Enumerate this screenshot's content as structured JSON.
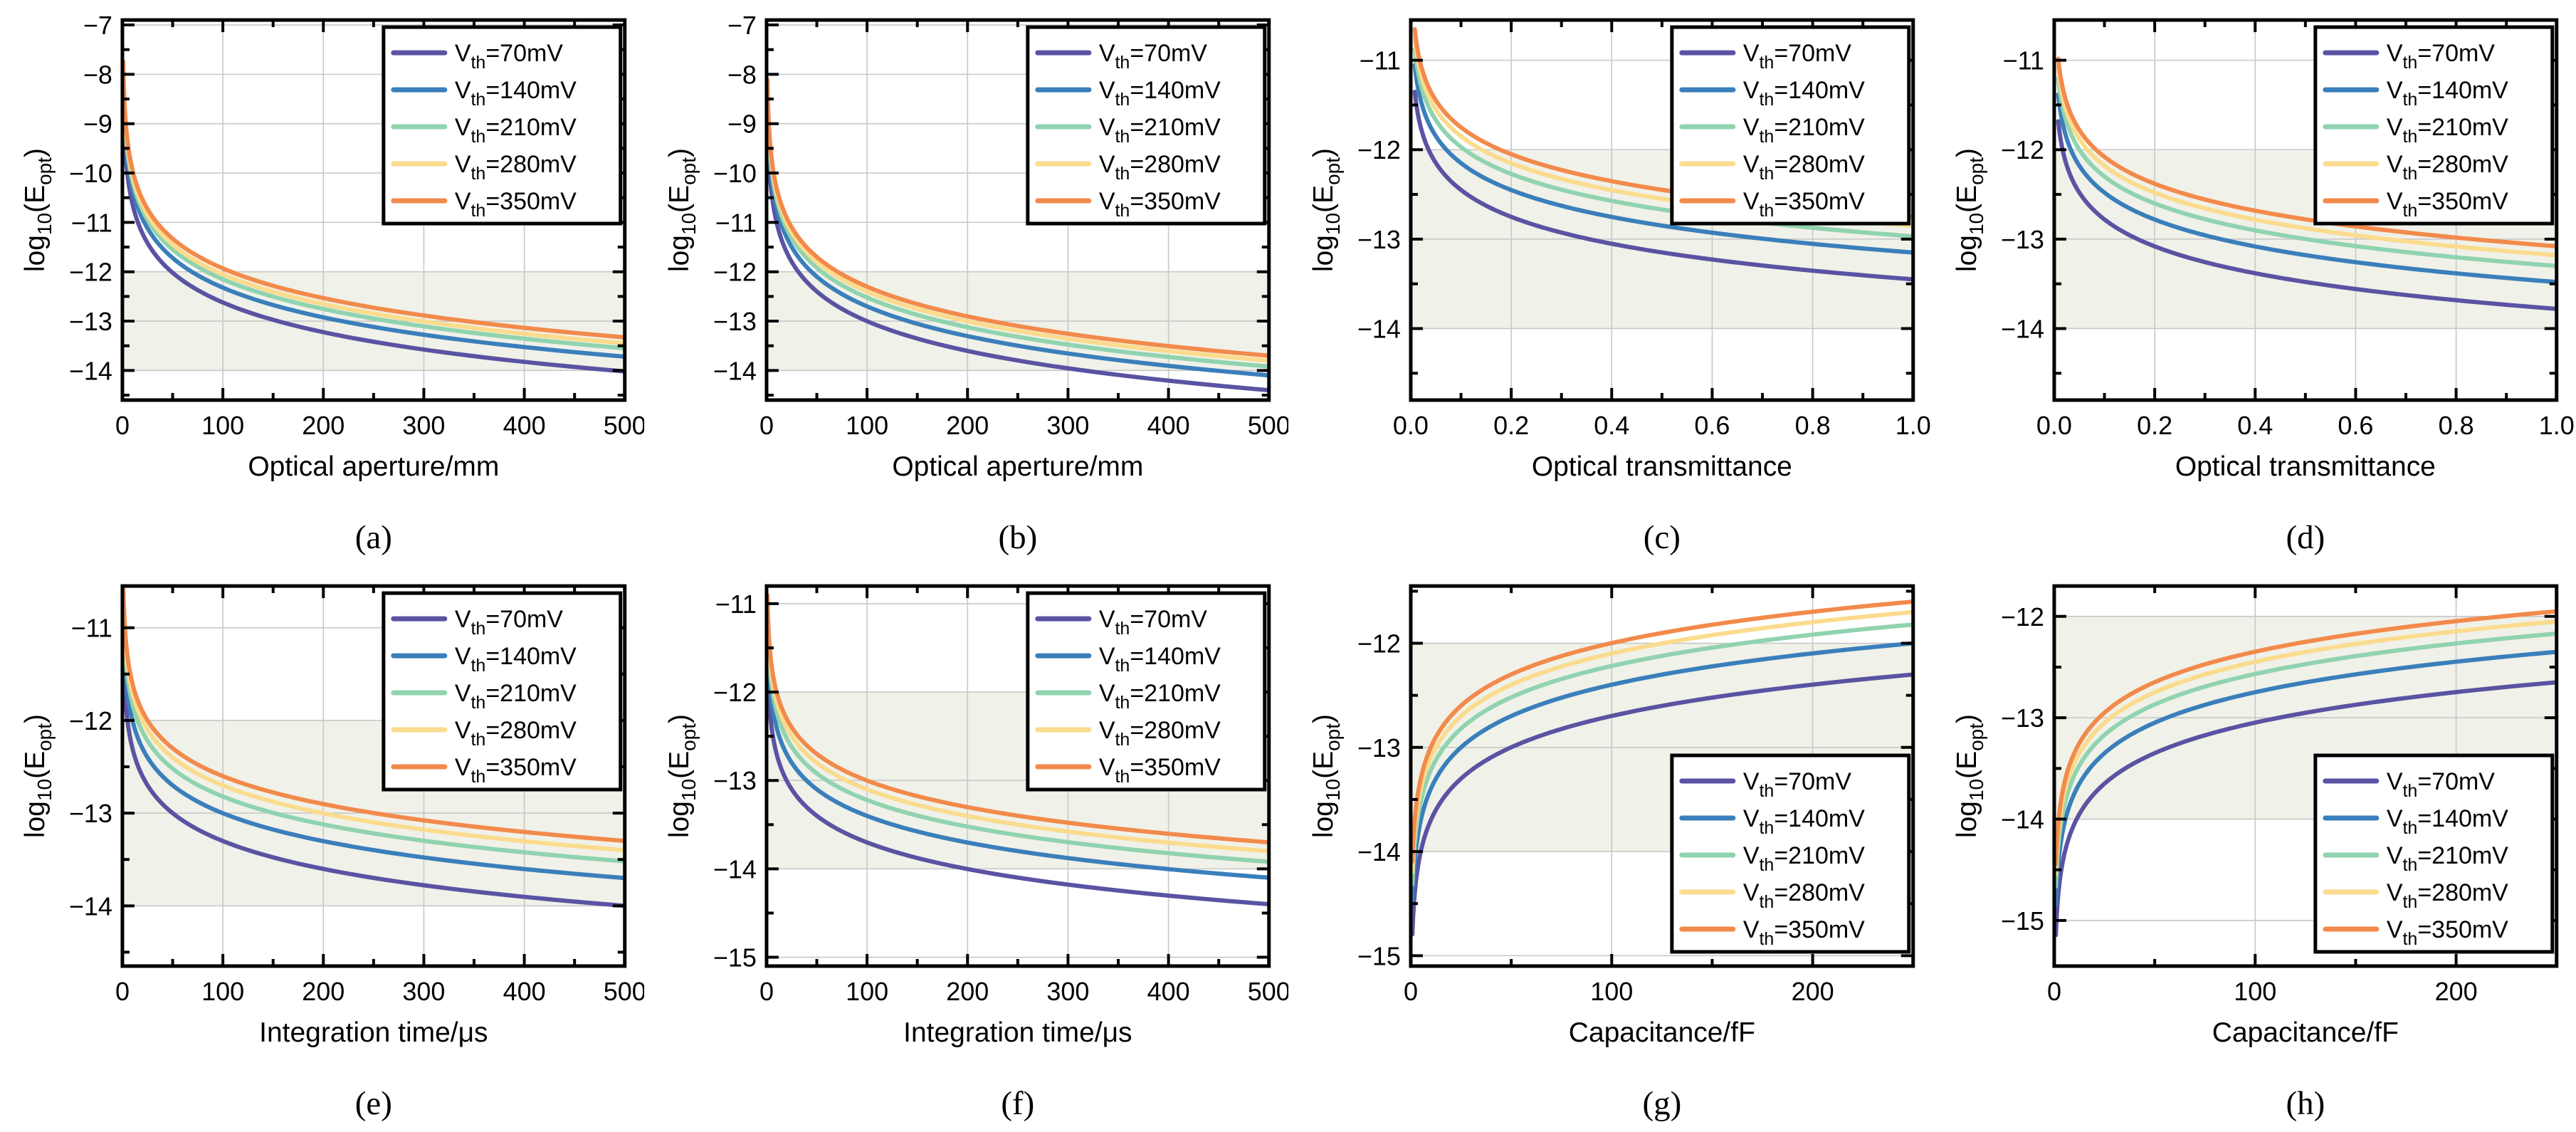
{
  "page": {
    "background": "#FFFFFF"
  },
  "style": {
    "band_fill": "#F0F1E8",
    "grid_color": "#C8C8C8",
    "axis_color": "#000000",
    "legend_bg": "#FFFFFF",
    "legend_border": "#000000"
  },
  "ylabel": {
    "pre": "log",
    "sub": "10",
    "mid": "(E",
    "sub2": "opt",
    "post": ")",
    "plain": "log10(Eopt)"
  },
  "series_meta": [
    {
      "key": "vth-70mv",
      "label": {
        "pre": "V",
        "sub": "th",
        "post": "=70mV"
      },
      "plain": "Vth=70mV",
      "color": "#5A53A3"
    },
    {
      "key": "vth-140mv",
      "label": {
        "pre": "V",
        "sub": "th",
        "post": "=140mV"
      },
      "plain": "Vth=140mV",
      "color": "#3A7FBB"
    },
    {
      "key": "vth-210mv",
      "label": {
        "pre": "V",
        "sub": "th",
        "post": "=210mV"
      },
      "plain": "Vth=210mV",
      "color": "#90D3AF"
    },
    {
      "key": "vth-280mv",
      "label": {
        "pre": "V",
        "sub": "th",
        "post": "=280mV"
      },
      "plain": "Vth=280mV",
      "color": "#FBDB8D"
    },
    {
      "key": "vth-350mv",
      "label": {
        "pre": "V",
        "sub": "th",
        "post": "=350mV"
      },
      "plain": "Vth=350mV",
      "color": "#F28A4B"
    }
  ],
  "chart_data": [
    {
      "id": "a",
      "type": "line",
      "caption": "(a)",
      "xlabel": "Optical aperture/mm",
      "xlim": [
        0,
        500
      ],
      "xticks": [
        0,
        100,
        200,
        300,
        400,
        500
      ],
      "xtick_labels": [
        "0",
        "100",
        "200",
        "300",
        "400",
        "500"
      ],
      "x_minor_step": 50,
      "ylim": [
        -14.6,
        -6.9
      ],
      "yticks": [
        -7,
        -8,
        -9,
        -10,
        -11,
        -12,
        -13,
        -14
      ],
      "shaded_band": [
        -14,
        -12
      ],
      "grid": true,
      "legend_pos": "top-right",
      "x_max": 500,
      "x_start": 0.8,
      "slope_per_decade": -2,
      "x_samples": [
        50,
        100,
        200,
        300,
        400,
        500
      ],
      "series": [
        {
          "name": "Vth=70mV",
          "y_at_xmax": -14.02,
          "y_samples": [
            -12.02,
            -12.62,
            -13.22,
            -13.58,
            -13.83,
            -14.02
          ]
        },
        {
          "name": "Vth=140mV",
          "y_at_xmax": -13.72,
          "y_samples": [
            -11.72,
            -12.32,
            -12.92,
            -13.28,
            -13.53,
            -13.72
          ]
        },
        {
          "name": "Vth=210mV",
          "y_at_xmax": -13.55,
          "y_samples": [
            -11.55,
            -12.15,
            -12.75,
            -13.11,
            -13.36,
            -13.55
          ]
        },
        {
          "name": "Vth=280mV",
          "y_at_xmax": -13.45,
          "y_samples": [
            -11.45,
            -12.05,
            -12.65,
            -13.01,
            -13.26,
            -13.45
          ]
        },
        {
          "name": "Vth=350mV",
          "y_at_xmax": -13.33,
          "y_samples": [
            -11.33,
            -11.93,
            -12.53,
            -12.89,
            -13.14,
            -13.33
          ]
        }
      ]
    },
    {
      "id": "b",
      "type": "line",
      "caption": "(b)",
      "xlabel": "Optical aperture/mm",
      "xlim": [
        0,
        500
      ],
      "xticks": [
        0,
        100,
        200,
        300,
        400,
        500
      ],
      "xtick_labels": [
        "0",
        "100",
        "200",
        "300",
        "400",
        "500"
      ],
      "x_minor_step": 50,
      "ylim": [
        -14.6,
        -6.9
      ],
      "yticks": [
        -7,
        -8,
        -9,
        -10,
        -11,
        -12,
        -13,
        -14
      ],
      "shaded_band": [
        -14,
        -12
      ],
      "grid": true,
      "legend_pos": "top-right",
      "x_max": 500,
      "x_start": 0.8,
      "slope_per_decade": -2,
      "x_samples": [
        50,
        100,
        200,
        300,
        400,
        500
      ],
      "series": [
        {
          "name": "Vth=70mV",
          "y_at_xmax": -14.4,
          "y_samples": [
            -12.4,
            -13.0,
            -13.6,
            -13.96,
            -14.21,
            -14.4
          ]
        },
        {
          "name": "Vth=140mV",
          "y_at_xmax": -14.1,
          "y_samples": [
            -12.1,
            -12.7,
            -13.3,
            -13.66,
            -13.91,
            -14.1
          ]
        },
        {
          "name": "Vth=210mV",
          "y_at_xmax": -13.92,
          "y_samples": [
            -11.92,
            -12.52,
            -13.12,
            -13.48,
            -13.73,
            -13.92
          ]
        },
        {
          "name": "Vth=280mV",
          "y_at_xmax": -13.8,
          "y_samples": [
            -11.8,
            -12.4,
            -13.0,
            -13.36,
            -13.61,
            -13.8
          ]
        },
        {
          "name": "Vth=350mV",
          "y_at_xmax": -13.7,
          "y_samples": [
            -11.7,
            -12.3,
            -12.9,
            -13.26,
            -13.51,
            -13.7
          ]
        }
      ]
    },
    {
      "id": "c",
      "type": "line",
      "caption": "(c)",
      "xlabel": "Optical transmittance",
      "xlim": [
        0,
        1
      ],
      "xticks": [
        0,
        0.2,
        0.4,
        0.6,
        0.8,
        1
      ],
      "xtick_labels": [
        "0.0",
        "0.2",
        "0.4",
        "0.6",
        "0.8",
        "1.0"
      ],
      "x_minor_step": 0.1,
      "ylim": [
        -14.8,
        -10.55
      ],
      "yticks": [
        -11,
        -12,
        -13,
        -14
      ],
      "shaded_band": [
        -14,
        -12
      ],
      "grid": true,
      "legend_pos": "top-right",
      "x_max": 1.0,
      "x_start": 0.008,
      "slope_per_decade": -1,
      "x_samples": [
        0.02,
        0.05,
        0.1,
        0.2,
        0.5,
        1.0
      ],
      "series": [
        {
          "name": "Vth=70mV",
          "y_at_xmax": -13.45,
          "y_samples": [
            -11.75,
            -12.15,
            -12.45,
            -12.75,
            -13.15,
            -13.45
          ]
        },
        {
          "name": "Vth=140mV",
          "y_at_xmax": -13.15,
          "y_samples": [
            -11.45,
            -11.85,
            -12.15,
            -12.45,
            -12.85,
            -13.15
          ]
        },
        {
          "name": "Vth=210mV",
          "y_at_xmax": -12.97,
          "y_samples": [
            -11.27,
            -11.67,
            -11.97,
            -12.27,
            -12.67,
            -12.97
          ]
        },
        {
          "name": "Vth=280mV",
          "y_at_xmax": -12.85,
          "y_samples": [
            -11.15,
            -11.55,
            -11.85,
            -12.15,
            -12.55,
            -12.85
          ]
        },
        {
          "name": "Vth=350mV",
          "y_at_xmax": -12.75,
          "y_samples": [
            -11.05,
            -11.45,
            -11.75,
            -12.05,
            -12.45,
            -12.75
          ]
        }
      ]
    },
    {
      "id": "d",
      "type": "line",
      "caption": "(d)",
      "xlabel": "Optical transmittance",
      "xlim": [
        0,
        1
      ],
      "xticks": [
        0,
        0.2,
        0.4,
        0.6,
        0.8,
        1
      ],
      "xtick_labels": [
        "0.0",
        "0.2",
        "0.4",
        "0.6",
        "0.8",
        "1.0"
      ],
      "x_minor_step": 0.1,
      "ylim": [
        -14.8,
        -10.55
      ],
      "yticks": [
        -11,
        -12,
        -13,
        -14
      ],
      "shaded_band": [
        -14,
        -12
      ],
      "grid": true,
      "legend_pos": "top-right",
      "x_max": 1.0,
      "x_start": 0.008,
      "slope_per_decade": -1,
      "x_samples": [
        0.02,
        0.05,
        0.1,
        0.2,
        0.5,
        1.0
      ],
      "series": [
        {
          "name": "Vth=70mV",
          "y_at_xmax": -13.78,
          "y_samples": [
            -12.08,
            -12.48,
            -12.78,
            -13.08,
            -13.48,
            -13.78
          ]
        },
        {
          "name": "Vth=140mV",
          "y_at_xmax": -13.48,
          "y_samples": [
            -11.78,
            -12.18,
            -12.48,
            -12.78,
            -13.18,
            -13.48
          ]
        },
        {
          "name": "Vth=210mV",
          "y_at_xmax": -13.3,
          "y_samples": [
            -11.6,
            -12.0,
            -12.3,
            -12.6,
            -13.0,
            -13.3
          ]
        },
        {
          "name": "Vth=280mV",
          "y_at_xmax": -13.18,
          "y_samples": [
            -11.48,
            -11.88,
            -12.18,
            -12.48,
            -12.88,
            -13.18
          ]
        },
        {
          "name": "Vth=350mV",
          "y_at_xmax": -13.08,
          "y_samples": [
            -11.38,
            -11.78,
            -12.08,
            -12.38,
            -12.78,
            -13.08
          ]
        }
      ]
    },
    {
      "id": "e",
      "type": "line",
      "caption": "(e)",
      "xlabel": "Integration time/μs",
      "xlim": [
        0,
        500
      ],
      "xticks": [
        0,
        100,
        200,
        300,
        400,
        500
      ],
      "xtick_labels": [
        "0",
        "100",
        "200",
        "300",
        "400",
        "500"
      ],
      "x_minor_step": 50,
      "ylim": [
        -14.65,
        -10.55
      ],
      "yticks": [
        -11,
        -12,
        -13,
        -14
      ],
      "shaded_band": [
        -14,
        -12
      ],
      "grid": true,
      "legend_pos": "top-right",
      "x_max": 500,
      "x_start": 0.8,
      "slope_per_decade": -1,
      "x_samples": [
        50,
        100,
        200,
        300,
        400,
        500
      ],
      "series": [
        {
          "name": "Vth=70mV",
          "y_at_xmax": -14.0,
          "y_samples": [
            -13.0,
            -13.3,
            -13.6,
            -13.78,
            -13.9,
            -14.0
          ]
        },
        {
          "name": "Vth=140mV",
          "y_at_xmax": -13.7,
          "y_samples": [
            -12.7,
            -13.0,
            -13.3,
            -13.48,
            -13.6,
            -13.7
          ]
        },
        {
          "name": "Vth=210mV",
          "y_at_xmax": -13.52,
          "y_samples": [
            -12.52,
            -12.82,
            -13.12,
            -13.3,
            -13.42,
            -13.52
          ]
        },
        {
          "name": "Vth=280mV",
          "y_at_xmax": -13.4,
          "y_samples": [
            -12.4,
            -12.7,
            -13.0,
            -13.18,
            -13.3,
            -13.4
          ]
        },
        {
          "name": "Vth=350mV",
          "y_at_xmax": -13.3,
          "y_samples": [
            -12.3,
            -12.6,
            -12.9,
            -13.08,
            -13.2,
            -13.3
          ]
        }
      ]
    },
    {
      "id": "f",
      "type": "line",
      "caption": "(f)",
      "xlabel": "Integration time/μs",
      "xlim": [
        0,
        500
      ],
      "xticks": [
        0,
        100,
        200,
        300,
        400,
        500
      ],
      "xtick_labels": [
        "0",
        "100",
        "200",
        "300",
        "400",
        "500"
      ],
      "x_minor_step": 50,
      "ylim": [
        -15.1,
        -10.8
      ],
      "yticks": [
        -11,
        -12,
        -13,
        -14,
        -15
      ],
      "shaded_band": [
        -14,
        -12
      ],
      "grid": true,
      "legend_pos": "top-right",
      "x_max": 500,
      "x_start": 0.8,
      "slope_per_decade": -1,
      "x_samples": [
        50,
        100,
        200,
        300,
        400,
        500
      ],
      "series": [
        {
          "name": "Vth=70mV",
          "y_at_xmax": -14.4,
          "y_samples": [
            -13.4,
            -13.7,
            -14.0,
            -14.18,
            -14.3,
            -14.4
          ]
        },
        {
          "name": "Vth=140mV",
          "y_at_xmax": -14.1,
          "y_samples": [
            -13.1,
            -13.4,
            -13.7,
            -13.88,
            -14.0,
            -14.1
          ]
        },
        {
          "name": "Vth=210mV",
          "y_at_xmax": -13.92,
          "y_samples": [
            -12.92,
            -13.22,
            -13.52,
            -13.7,
            -13.82,
            -13.92
          ]
        },
        {
          "name": "Vth=280mV",
          "y_at_xmax": -13.8,
          "y_samples": [
            -12.8,
            -13.1,
            -13.4,
            -13.58,
            -13.7,
            -13.8
          ]
        },
        {
          "name": "Vth=350mV",
          "y_at_xmax": -13.7,
          "y_samples": [
            -12.7,
            -13.0,
            -13.3,
            -13.48,
            -13.6,
            -13.7
          ]
        }
      ]
    },
    {
      "id": "g",
      "type": "line",
      "caption": "(g)",
      "xlabel": "Capacitance/fF",
      "xlim": [
        0,
        250
      ],
      "xticks": [
        0,
        100,
        200
      ],
      "xtick_labels": [
        "0",
        "100",
        "200"
      ],
      "x_minor_step": 50,
      "ylim": [
        -15.1,
        -11.45
      ],
      "yticks": [
        -12,
        -13,
        -14,
        -15
      ],
      "shaded_band": [
        -14,
        -12
      ],
      "grid": true,
      "legend_pos": "right-lower",
      "x_max": 250,
      "x_start": 0.8,
      "slope_per_decade": 1,
      "x_samples": [
        5,
        25,
        50,
        100,
        150,
        250
      ],
      "series": [
        {
          "name": "Vth=70mV",
          "y_at_xmax": -12.3,
          "y_samples": [
            -14.0,
            -13.3,
            -13.0,
            -12.7,
            -12.52,
            -12.3
          ]
        },
        {
          "name": "Vth=140mV",
          "y_at_xmax": -12.0,
          "y_samples": [
            -13.7,
            -13.0,
            -12.7,
            -12.4,
            -12.22,
            -12.0
          ]
        },
        {
          "name": "Vth=210mV",
          "y_at_xmax": -11.82,
          "y_samples": [
            -13.52,
            -12.82,
            -12.52,
            -12.22,
            -12.04,
            -11.82
          ]
        },
        {
          "name": "Vth=280mV",
          "y_at_xmax": -11.7,
          "y_samples": [
            -13.4,
            -12.7,
            -12.4,
            -12.1,
            -11.92,
            -11.7
          ]
        },
        {
          "name": "Vth=350mV",
          "y_at_xmax": -11.6,
          "y_samples": [
            -13.3,
            -12.6,
            -12.3,
            -12.0,
            -11.82,
            -11.6
          ]
        }
      ]
    },
    {
      "id": "h",
      "type": "line",
      "caption": "(h)",
      "xlabel": "Capacitance/fF",
      "xlim": [
        0,
        250
      ],
      "xticks": [
        0,
        100,
        200
      ],
      "xtick_labels": [
        "0",
        "100",
        "200"
      ],
      "x_minor_step": 50,
      "ylim": [
        -15.45,
        -11.7
      ],
      "yticks": [
        -12,
        -13,
        -14,
        -15
      ],
      "shaded_band": [
        -14,
        -12
      ],
      "grid": true,
      "legend_pos": "right-lower",
      "x_max": 250,
      "x_start": 0.8,
      "slope_per_decade": 1,
      "x_samples": [
        5,
        25,
        50,
        100,
        150,
        250
      ],
      "series": [
        {
          "name": "Vth=70mV",
          "y_at_xmax": -12.65,
          "y_samples": [
            -14.35,
            -13.65,
            -13.35,
            -13.05,
            -12.87,
            -12.65
          ]
        },
        {
          "name": "Vth=140mV",
          "y_at_xmax": -12.35,
          "y_samples": [
            -14.05,
            -13.35,
            -13.05,
            -12.75,
            -12.57,
            -12.35
          ]
        },
        {
          "name": "Vth=210mV",
          "y_at_xmax": -12.17,
          "y_samples": [
            -13.87,
            -13.17,
            -12.87,
            -12.57,
            -12.39,
            -12.17
          ]
        },
        {
          "name": "Vth=280mV",
          "y_at_xmax": -12.05,
          "y_samples": [
            -13.75,
            -13.05,
            -12.75,
            -12.45,
            -12.27,
            -12.05
          ]
        },
        {
          "name": "Vth=350mV",
          "y_at_xmax": -11.95,
          "y_samples": [
            -13.65,
            -12.95,
            -12.65,
            -12.35,
            -12.17,
            -11.95
          ]
        }
      ]
    }
  ]
}
